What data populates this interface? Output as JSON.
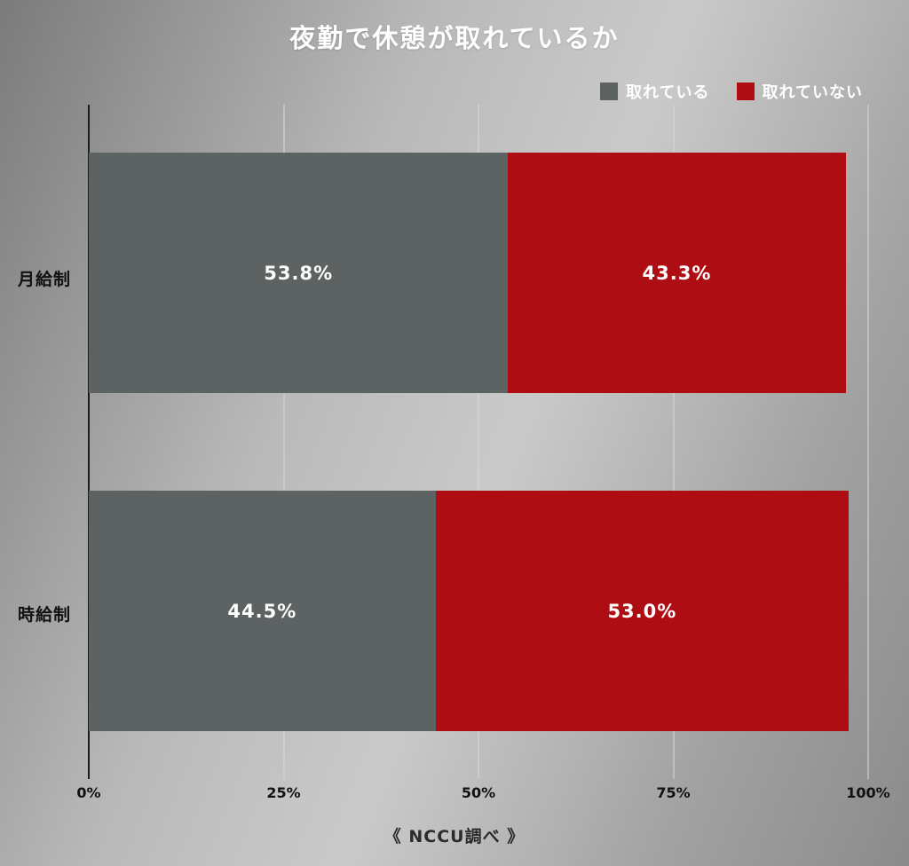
{
  "title": "夜勤で休憩が取れているか",
  "legend": [
    {
      "label": "取れている",
      "color": "#5d6363"
    },
    {
      "label": "取れていない",
      "color": "#af0d14"
    }
  ],
  "chart_data": {
    "type": "bar",
    "orientation": "horizontal",
    "stacked": true,
    "title": "夜勤で休憩が取れているか",
    "categories": [
      "月給制",
      "時給制"
    ],
    "series": [
      {
        "name": "取れている",
        "color": "#5d6363",
        "values": [
          53.8,
          44.5
        ]
      },
      {
        "name": "取れていない",
        "color": "#af0d14",
        "values": [
          43.3,
          53.0
        ]
      }
    ],
    "x_ticks": [
      "0%",
      "25%",
      "50%",
      "75%",
      "100%"
    ],
    "xlim": [
      0,
      100
    ],
    "grid": "vertical-major",
    "legend_position": "top-right",
    "source": "《 NCCU調べ 》"
  },
  "bars": [
    {
      "category": "月給制",
      "segments": [
        {
          "series": "取れている",
          "value": 53.8,
          "label": "53.8%"
        },
        {
          "series": "取れていない",
          "value": 43.3,
          "label": "43.3%"
        }
      ]
    },
    {
      "category": "時給制",
      "segments": [
        {
          "series": "取れている",
          "value": 44.5,
          "label": "44.5%"
        },
        {
          "series": "取れていない",
          "value": 53.0,
          "label": "53.0%"
        }
      ]
    }
  ],
  "footer": {
    "source": "《 NCCU調べ 》"
  }
}
